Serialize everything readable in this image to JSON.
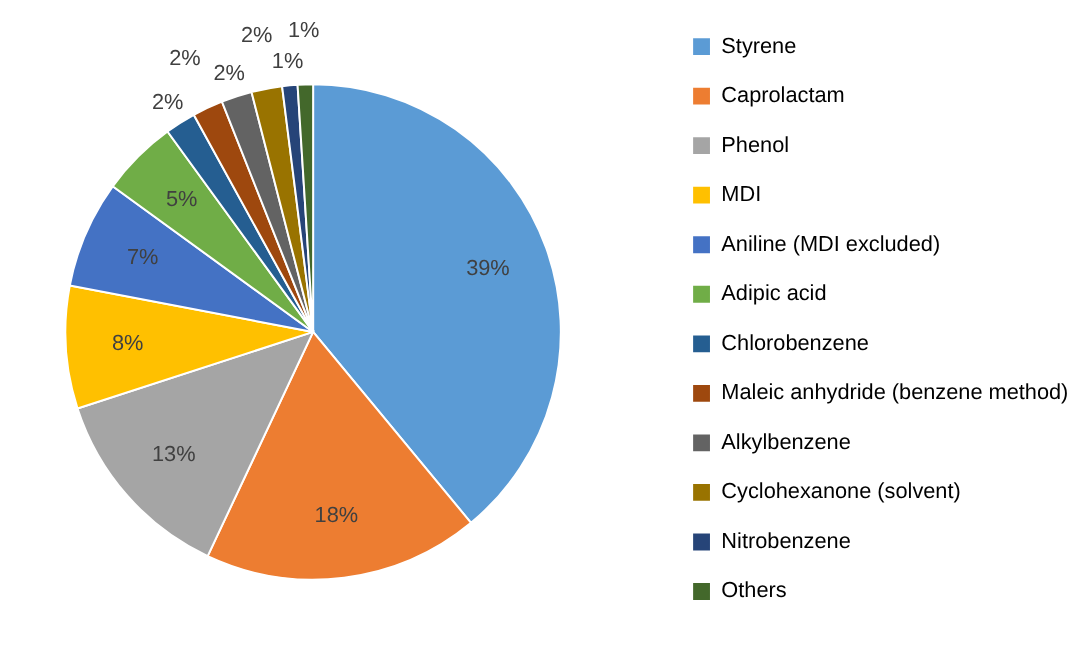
{
  "chart_data": {
    "type": "pie",
    "legend": "right",
    "categories": [
      "Styrene",
      "Caprolactam",
      "Phenol",
      "MDI",
      "Aniline (MDI excluded)",
      "Adipic acid",
      "Chlorobenzene",
      "Maleic anhydride (benzene method)",
      "Alkylbenzene",
      "Cyclohexanone (solvent)",
      "Nitrobenzene",
      "Others"
    ],
    "values": [
      39,
      18,
      13,
      8,
      7,
      5,
      2,
      2,
      2,
      2,
      1,
      1
    ],
    "value_labels": [
      "39%",
      "18%",
      "13%",
      "8%",
      "7%",
      "5%",
      "2%",
      "2%",
      "2%",
      "2%",
      "1%",
      "1%"
    ],
    "colors": [
      "#5b9bd5",
      "#ed7d31",
      "#a5a5a5",
      "#ffc000",
      "#4472c4",
      "#70ad47",
      "#255e91",
      "#9e480e",
      "#636363",
      "#997300",
      "#264478",
      "#43682b"
    ]
  }
}
